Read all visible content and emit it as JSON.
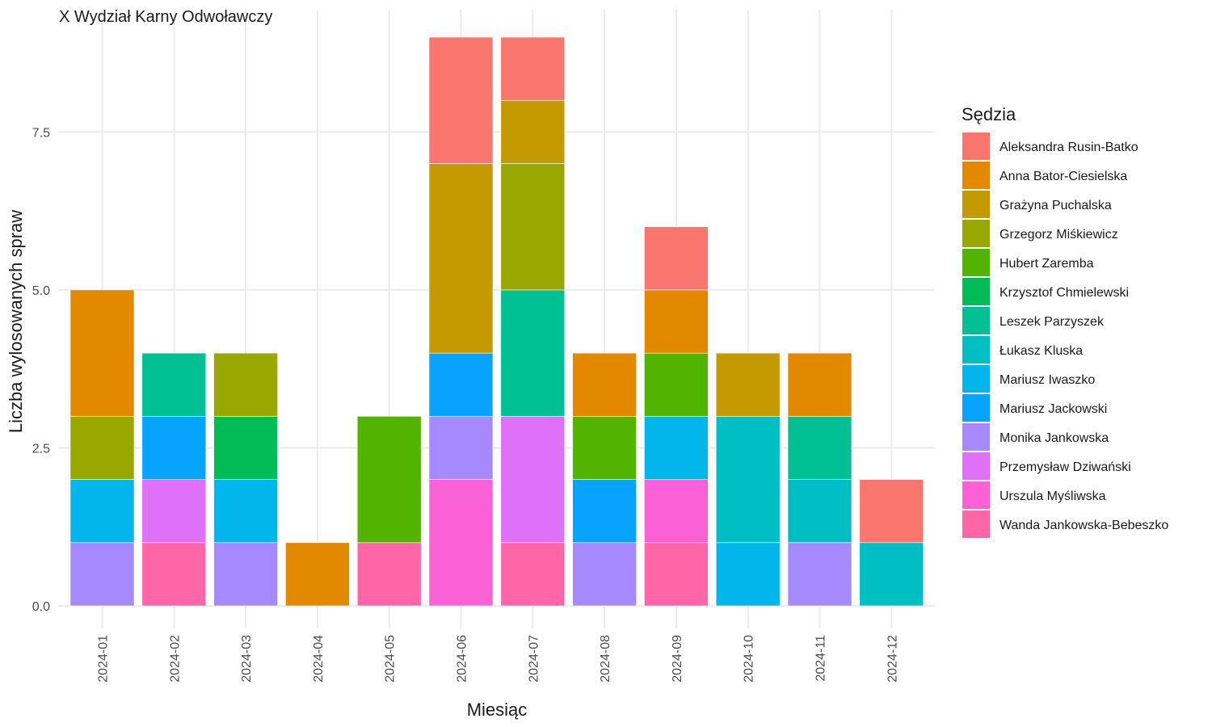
{
  "chart_data": {
    "type": "bar",
    "stacked": true,
    "title": "X Wydział Karny Odwoławczy",
    "xlabel": "Miesiąc",
    "ylabel": "Liczba wylosowanych spraw",
    "ylim": [
      0,
      9
    ],
    "yticks": [
      0,
      2.5,
      5,
      7.5
    ],
    "ytick_labels": [
      "0.0",
      "2.5",
      "5.0",
      "7.5"
    ],
    "grid": true,
    "legend_position": "right",
    "legend_title": "Sędzia",
    "categories": [
      "2024-01",
      "2024-02",
      "2024-03",
      "2024-04",
      "2024-05",
      "2024-06",
      "2024-07",
      "2024-08",
      "2024-09",
      "2024-10",
      "2024-11",
      "2024-12"
    ],
    "series": [
      {
        "name": "Aleksandra Rusin-Batko",
        "color": "#F8766D",
        "values": [
          0,
          0,
          0,
          0,
          0,
          2,
          1,
          0,
          1,
          0,
          0,
          1
        ]
      },
      {
        "name": "Anna Bator-Ciesielska",
        "color": "#E38900",
        "values": [
          2,
          0,
          0,
          1,
          0,
          0,
          0,
          1,
          1,
          0,
          1,
          0
        ]
      },
      {
        "name": "Grażyna Puchalska",
        "color": "#C49A00",
        "values": [
          0,
          0,
          0,
          0,
          0,
          3,
          1,
          0,
          0,
          1,
          0,
          0
        ]
      },
      {
        "name": "Grzegorz Miśkiewicz",
        "color": "#99A800",
        "values": [
          1,
          0,
          1,
          0,
          0,
          0,
          2,
          0,
          0,
          0,
          0,
          0
        ]
      },
      {
        "name": "Hubert Zaremba",
        "color": "#53B400",
        "values": [
          0,
          0,
          0,
          0,
          2,
          0,
          0,
          1,
          1,
          0,
          0,
          0
        ]
      },
      {
        "name": "Krzysztof Chmielewski",
        "color": "#00BC56",
        "values": [
          0,
          0,
          1,
          0,
          0,
          0,
          0,
          0,
          0,
          0,
          0,
          0
        ]
      },
      {
        "name": "Leszek Parzyszek",
        "color": "#00C094",
        "values": [
          0,
          1,
          0,
          0,
          0,
          0,
          2,
          0,
          0,
          0,
          1,
          0
        ]
      },
      {
        "name": "Łukasz Kluska",
        "color": "#00BFC4",
        "values": [
          0,
          0,
          0,
          0,
          0,
          0,
          0,
          0,
          0,
          2,
          1,
          1
        ]
      },
      {
        "name": "Mariusz Iwaszko",
        "color": "#00B6EB",
        "values": [
          1,
          0,
          1,
          0,
          0,
          0,
          0,
          0,
          1,
          1,
          0,
          0
        ]
      },
      {
        "name": "Mariusz Jackowski",
        "color": "#06A4FF",
        "values": [
          0,
          1,
          0,
          0,
          0,
          1,
          0,
          1,
          0,
          0,
          0,
          0
        ]
      },
      {
        "name": "Monika Jankowska",
        "color": "#A58AFF",
        "values": [
          1,
          0,
          1,
          0,
          0,
          1,
          0,
          1,
          0,
          0,
          1,
          0
        ]
      },
      {
        "name": "Przemysław Dziwański",
        "color": "#DF70F8",
        "values": [
          0,
          1,
          0,
          0,
          0,
          0,
          2,
          0,
          0,
          0,
          0,
          0
        ]
      },
      {
        "name": "Urszula Myśliwska",
        "color": "#FB61D7",
        "values": [
          0,
          0,
          0,
          0,
          0,
          2,
          0,
          0,
          1,
          0,
          0,
          0
        ]
      },
      {
        "name": "Wanda Jankowska-Bebeszko",
        "color": "#FF66A8",
        "values": [
          0,
          1,
          0,
          0,
          1,
          0,
          1,
          0,
          1,
          0,
          0,
          0
        ]
      }
    ]
  }
}
